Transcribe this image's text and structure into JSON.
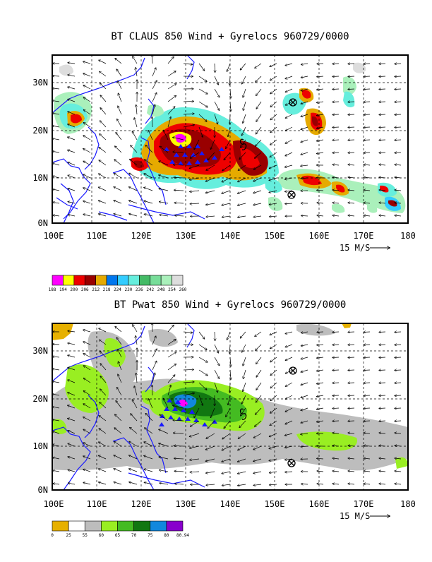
{
  "panels": [
    {
      "title": "BT CLAUS 850 Wind + Gyrelocs 960729/0000",
      "x_ticks": [
        "100E",
        "110E",
        "120E",
        "130E",
        "140E",
        "150E",
        "160E",
        "170E",
        "180"
      ],
      "y_ticks": [
        "0N",
        "10N",
        "20N",
        "30N"
      ],
      "wind_scale_label": "15 M/S",
      "legend": {
        "labels": [
          "188",
          "194",
          "200",
          "206",
          "212",
          "218",
          "224",
          "230",
          "236",
          "242",
          "248",
          "254",
          "260"
        ],
        "colors": [
          "#ff00ff",
          "#ffff00",
          "#ee0000",
          "#990000",
          "#e6aa00",
          "#0077ee",
          "#33ccff",
          "#66eedd",
          "#44bb66",
          "#77dd99",
          "#aaf0bb",
          "#dddddd"
        ]
      }
    },
    {
      "title": "BT Pwat 850 Wind + Gyrelocs 960729/0000",
      "x_ticks": [
        "100E",
        "110E",
        "120E",
        "130E",
        "140E",
        "150E",
        "160E",
        "170E",
        "180"
      ],
      "y_ticks": [
        "0N",
        "10N",
        "20N",
        "30N"
      ],
      "wind_scale_label": "15 M/S",
      "legend": {
        "labels": [
          "0",
          "25",
          "55",
          "60",
          "65",
          "70",
          "75",
          "80",
          "80.94"
        ],
        "colors": [
          "#e6b000",
          "#ffffff",
          "#bdbdbd",
          "#99ee22",
          "#44bb22",
          "#117711",
          "#1188dd",
          "#8800cc"
        ]
      }
    }
  ]
}
